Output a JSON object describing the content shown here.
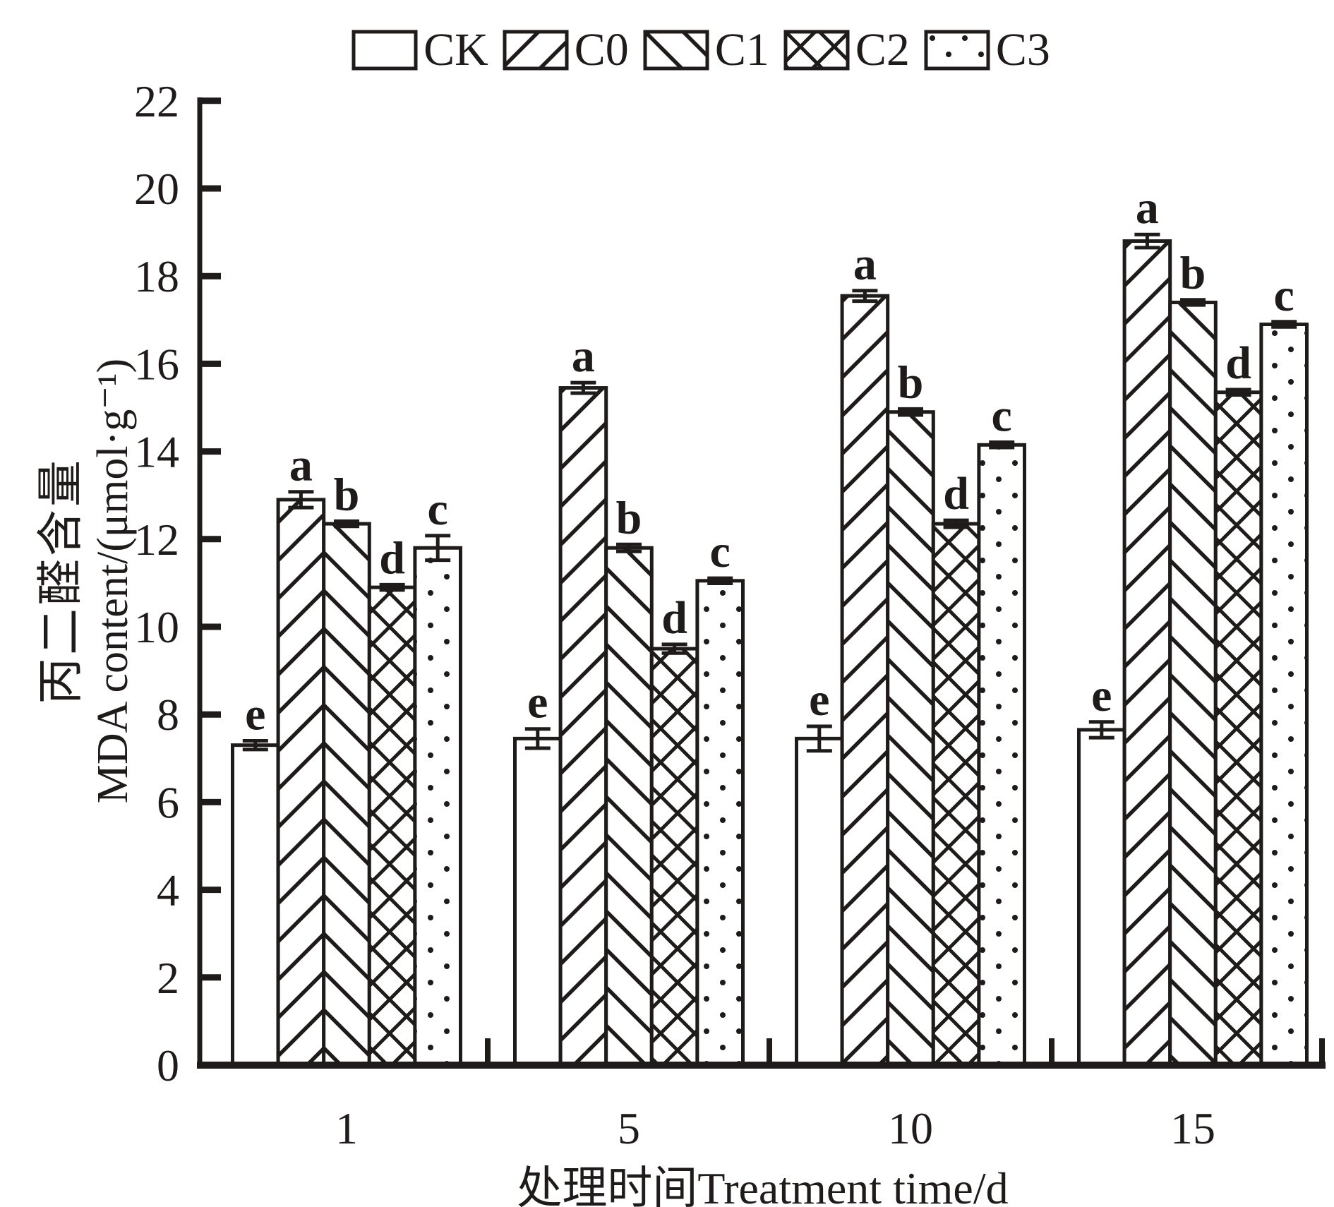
{
  "colors": {
    "ink": "#1f1b1a",
    "background": "#ffffff"
  },
  "chart_data": {
    "type": "bar",
    "title": "",
    "categories": [
      "1",
      "5",
      "10",
      "15"
    ],
    "xlabel": "处理时间Treatment time/d",
    "ylabel_line1_zh": "丙二醛含量",
    "ylabel_line2_en": "MDA content/(μmol·g⁻¹)",
    "ylim": [
      0,
      22
    ],
    "ytick_step": 2,
    "yticks": [
      0,
      2,
      4,
      6,
      8,
      10,
      12,
      14,
      16,
      18,
      20,
      22
    ],
    "grid": false,
    "legend_position": "top",
    "error_bars": true,
    "series": [
      {
        "name": "CK",
        "pattern": "plain",
        "values": [
          7.3,
          7.45,
          7.45,
          7.65
        ],
        "errors": [
          0.1,
          0.22,
          0.28,
          0.18
        ],
        "sig_letters": [
          "e",
          "e",
          "e",
          "e"
        ]
      },
      {
        "name": "C0",
        "pattern": "hatch-forward-diagonal",
        "values": [
          12.9,
          15.45,
          17.55,
          18.8
        ],
        "errors": [
          0.18,
          0.12,
          0.12,
          0.15
        ],
        "sig_letters": [
          "a",
          "a",
          "a",
          "a"
        ]
      },
      {
        "name": "C1",
        "pattern": "hatch-backward-diagonal",
        "values": [
          12.35,
          11.8,
          14.9,
          17.4
        ],
        "errors": [
          0.06,
          0.08,
          0.07,
          0.06
        ],
        "sig_letters": [
          "b",
          "b",
          "b",
          "b"
        ]
      },
      {
        "name": "C2",
        "pattern": "crosshatch",
        "values": [
          10.9,
          9.5,
          12.35,
          15.35
        ],
        "errors": [
          0.06,
          0.1,
          0.08,
          0.06
        ],
        "sig_letters": [
          "d",
          "d",
          "d",
          "d"
        ]
      },
      {
        "name": "C3",
        "pattern": "dots",
        "values": [
          11.8,
          11.05,
          14.15,
          16.9
        ],
        "errors": [
          0.28,
          0.06,
          0.06,
          0.06
        ],
        "sig_letters": [
          "c",
          "c",
          "c",
          "c"
        ]
      }
    ]
  }
}
